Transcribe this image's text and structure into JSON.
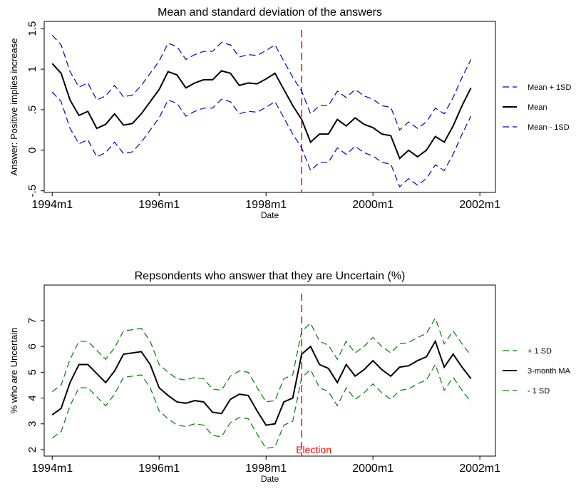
{
  "chart_data": [
    {
      "type": "line",
      "title": "Mean and standard deviation of the answers",
      "x_label": "Date",
      "y_label": "Answer: Positive implies increase",
      "x": [
        408,
        410,
        412,
        414,
        416,
        418,
        420,
        422,
        424,
        426,
        428,
        430,
        432,
        434,
        436,
        438,
        440,
        442,
        444,
        446,
        448,
        450,
        452,
        454,
        456,
        458,
        460,
        462,
        464,
        466,
        468,
        470,
        472,
        474,
        476,
        478,
        480,
        482,
        484,
        486,
        488,
        490,
        492,
        494,
        496,
        498,
        500,
        502
      ],
      "series": [
        {
          "name": "Mean + 1SD",
          "color": "#0000cc",
          "dashed": true,
          "values": [
            1.42,
            1.3,
            0.97,
            0.78,
            0.83,
            0.62,
            0.67,
            0.8,
            0.66,
            0.68,
            0.8,
            0.95,
            1.1,
            1.32,
            1.28,
            1.12,
            1.18,
            1.22,
            1.22,
            1.33,
            1.3,
            1.15,
            1.18,
            1.17,
            1.23,
            1.3,
            1.1,
            0.9,
            0.73,
            0.45,
            0.55,
            0.55,
            0.73,
            0.65,
            0.75,
            0.67,
            0.63,
            0.55,
            0.53,
            0.25,
            0.35,
            0.27,
            0.35,
            0.52,
            0.45,
            0.65,
            0.9,
            1.12
          ]
        },
        {
          "name": "Mean",
          "color": "#000000",
          "dashed": false,
          "values": [
            1.07,
            0.95,
            0.62,
            0.43,
            0.48,
            0.27,
            0.32,
            0.45,
            0.31,
            0.33,
            0.45,
            0.6,
            0.75,
            0.97,
            0.93,
            0.77,
            0.83,
            0.87,
            0.87,
            0.98,
            0.95,
            0.8,
            0.83,
            0.82,
            0.88,
            0.95,
            0.75,
            0.55,
            0.38,
            0.1,
            0.2,
            0.2,
            0.38,
            0.3,
            0.4,
            0.32,
            0.28,
            0.2,
            0.18,
            -0.1,
            0.0,
            -0.08,
            0.0,
            0.17,
            0.1,
            0.3,
            0.55,
            0.77
          ]
        },
        {
          "name": "Mean - 1SD",
          "color": "#0000cc",
          "dashed": true,
          "values": [
            0.72,
            0.6,
            0.27,
            0.08,
            0.13,
            -0.08,
            -0.03,
            0.1,
            -0.04,
            -0.02,
            0.1,
            0.25,
            0.4,
            0.62,
            0.58,
            0.42,
            0.48,
            0.52,
            0.52,
            0.63,
            0.6,
            0.45,
            0.48,
            0.47,
            0.53,
            0.6,
            0.4,
            0.2,
            0.03,
            -0.25,
            -0.15,
            -0.15,
            0.03,
            -0.05,
            0.05,
            -0.03,
            -0.07,
            -0.15,
            -0.17,
            -0.45,
            -0.35,
            -0.43,
            -0.35,
            -0.18,
            -0.25,
            -0.05,
            0.2,
            0.42
          ]
        }
      ],
      "xlim": [
        406.2,
        507.5
      ],
      "xticks": [
        {
          "value": 408,
          "label": "1994m1"
        },
        {
          "value": 432,
          "label": "1996m1"
        },
        {
          "value": 456,
          "label": "1998m1"
        },
        {
          "value": 480,
          "label": "2000m1"
        },
        {
          "value": 504,
          "label": "2002m1"
        }
      ],
      "ylim": [
        -0.52,
        1.59
      ],
      "yticks": [
        {
          "value": -0.5,
          "label": "-.5"
        },
        0,
        {
          "value": 0.5,
          "label": ".5"
        },
        1,
        1.5
      ],
      "vline": 464,
      "vline_color": "#ff0000",
      "legend": "right"
    },
    {
      "type": "line",
      "title": "Repsondents who answer that they are Uncertain (%)",
      "x_label": "Date",
      "y_label": "% who are Uncertain",
      "x": [
        408,
        410,
        412,
        414,
        416,
        418,
        420,
        422,
        424,
        426,
        428,
        430,
        432,
        434,
        436,
        438,
        440,
        442,
        444,
        446,
        448,
        450,
        452,
        454,
        456,
        458,
        460,
        462,
        464,
        466,
        468,
        470,
        472,
        474,
        476,
        478,
        480,
        482,
        484,
        486,
        488,
        490,
        492,
        494,
        496,
        498,
        500,
        502
      ],
      "series": [
        {
          "name": "+ 1 SD",
          "color": "#008000",
          "dashed": true,
          "values": [
            4.25,
            4.5,
            5.5,
            6.2,
            6.2,
            5.85,
            5.5,
            5.95,
            6.6,
            6.65,
            6.7,
            6.2,
            5.3,
            5.0,
            4.75,
            4.7,
            4.8,
            4.75,
            4.35,
            4.3,
            4.85,
            5.05,
            5.0,
            4.4,
            3.85,
            3.9,
            4.75,
            4.9,
            6.6,
            6.9,
            6.2,
            6.05,
            5.5,
            6.2,
            5.75,
            6.0,
            6.35,
            6.0,
            5.75,
            6.1,
            6.15,
            6.35,
            6.5,
            7.1,
            6.1,
            6.6,
            6.1,
            5.65
          ]
        },
        {
          "name": "3-month MA",
          "color": "#000000",
          "dashed": false,
          "values": [
            3.35,
            3.6,
            4.6,
            5.3,
            5.3,
            4.95,
            4.6,
            5.05,
            5.7,
            5.75,
            5.8,
            5.3,
            4.4,
            4.1,
            3.85,
            3.8,
            3.9,
            3.85,
            3.45,
            3.4,
            3.95,
            4.15,
            4.1,
            3.5,
            2.95,
            3.0,
            3.85,
            4.0,
            5.7,
            6.0,
            5.3,
            5.15,
            4.6,
            5.3,
            4.85,
            5.1,
            5.45,
            5.1,
            4.85,
            5.2,
            5.25,
            5.45,
            5.6,
            6.2,
            5.2,
            5.7,
            5.2,
            4.75
          ]
        },
        {
          "name": "- 1 SD",
          "color": "#008000",
          "dashed": true,
          "values": [
            2.45,
            2.7,
            3.7,
            4.4,
            4.4,
            4.05,
            3.7,
            4.15,
            4.8,
            4.85,
            4.9,
            4.4,
            3.5,
            3.2,
            2.95,
            2.9,
            3.0,
            2.95,
            2.55,
            2.5,
            3.05,
            3.25,
            3.2,
            2.6,
            2.05,
            2.1,
            2.95,
            3.1,
            4.8,
            5.1,
            4.4,
            4.25,
            3.7,
            4.4,
            3.95,
            4.2,
            4.55,
            4.2,
            3.95,
            4.3,
            4.35,
            4.55,
            4.7,
            5.3,
            4.3,
            4.8,
            4.3,
            3.85
          ]
        }
      ],
      "xlim": [
        406.2,
        507.5
      ],
      "xticks": [
        {
          "value": 408,
          "label": "1994m1"
        },
        {
          "value": 432,
          "label": "1996m1"
        },
        {
          "value": 456,
          "label": "1998m1"
        },
        {
          "value": 480,
          "label": "2000m1"
        },
        {
          "value": 504,
          "label": "2002m1"
        }
      ],
      "ylim": [
        1.75,
        8.38
      ],
      "yticks": [
        2,
        3,
        4,
        5,
        6,
        7
      ],
      "vline": 464,
      "vline_color": "#ff0000",
      "annotation": "Election",
      "legend": "right"
    }
  ]
}
